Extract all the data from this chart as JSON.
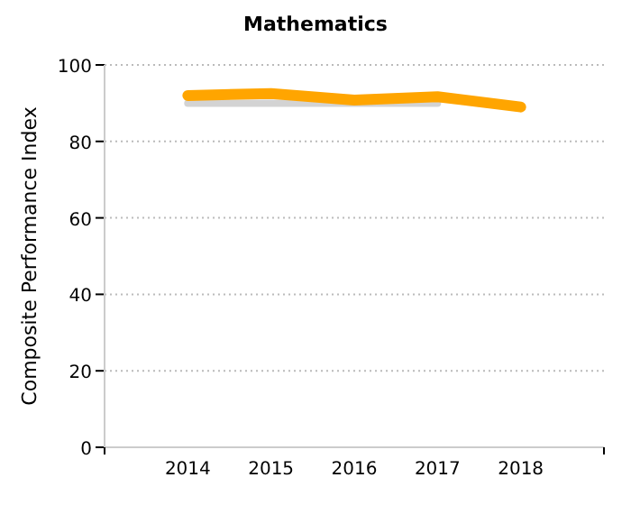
{
  "chart_data": {
    "type": "line",
    "title": "Mathematics",
    "ylabel": "Composite Performance Index",
    "categories": [
      "2014",
      "2015",
      "2016",
      "2017",
      "2018"
    ],
    "series": [
      {
        "color": "#d3d3d3",
        "values": [
          90,
          90,
          90,
          90,
          null
        ]
      },
      {
        "color": "#ffa500",
        "values": [
          92,
          92.5,
          90.8,
          91.7,
          89
        ]
      }
    ],
    "ylim": [
      0,
      100
    ],
    "yticks": [
      0,
      20,
      40,
      60,
      80,
      100
    ],
    "grid": "y"
  }
}
